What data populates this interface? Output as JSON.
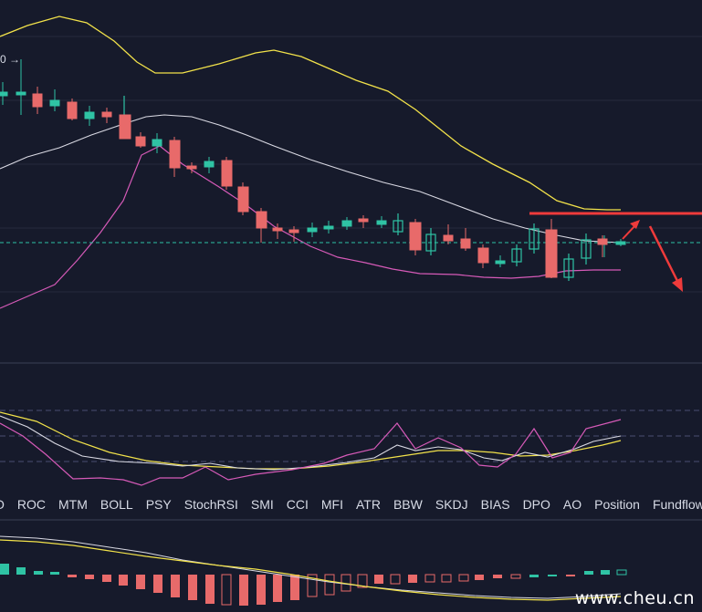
{
  "main_chart": {
    "price_label": "0 →",
    "colors": {
      "background": "#161a2b",
      "up": "#2fc3a4",
      "down": "#e86a6a",
      "boll_upper": "#f2e24a",
      "boll_mid": "#d9d9e3",
      "boll_lower": "#d65ab8",
      "resistance": "#ef3b3b",
      "current_price": "#2fc3a4"
    }
  },
  "indicator_tabs": [
    "O",
    "ROC",
    "MTM",
    "BOLL",
    "PSY",
    "StochRSI",
    "SMI",
    "CCI",
    "MFI",
    "ATR",
    "BBW",
    "SKDJ",
    "BIAS",
    "DPO",
    "AO",
    "Position",
    "Fundflow"
  ],
  "watermark": "www.cheu.cn"
}
